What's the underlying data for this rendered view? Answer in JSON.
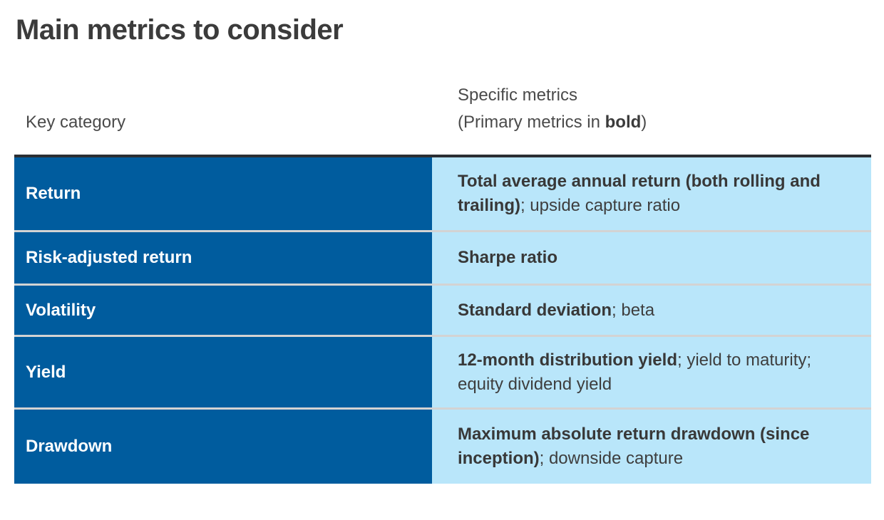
{
  "title": "Main metrics to consider",
  "table": {
    "headers": {
      "category": "Key category",
      "metrics_line1": "Specific metrics",
      "metrics_line2_prefix": "(Primary metrics in ",
      "metrics_line2_bold": "bold",
      "metrics_line2_suffix": ")"
    },
    "rows": [
      {
        "category": "Return",
        "metric_bold": "Total average annual return (both rolling and trailing)",
        "metric_rest": "; upside capture ratio"
      },
      {
        "category": "Risk-adjusted return",
        "metric_bold": "Sharpe ratio",
        "metric_rest": ""
      },
      {
        "category": "Volatility",
        "metric_bold": "Standard deviation",
        "metric_rest": "; beta"
      },
      {
        "category": "Yield",
        "metric_bold": "12-month distribution yield",
        "metric_rest": "; yield to maturity; equity dividend yield"
      },
      {
        "category": "Drawdown",
        "metric_bold": "Maximum absolute return drawdown (since inception)",
        "metric_rest": "; downside capture"
      }
    ]
  },
  "colors": {
    "dark_blue": "#005C9E",
    "light_blue": "#B9E6FA",
    "top_border": "#2B2E33",
    "row_separator": "#D3D3D3",
    "title_text": "#3B3B3B",
    "header_text": "#4A4A4A",
    "cell_text_dark": "#3E3E3E",
    "cell_text_white": "#FFFFFF"
  }
}
